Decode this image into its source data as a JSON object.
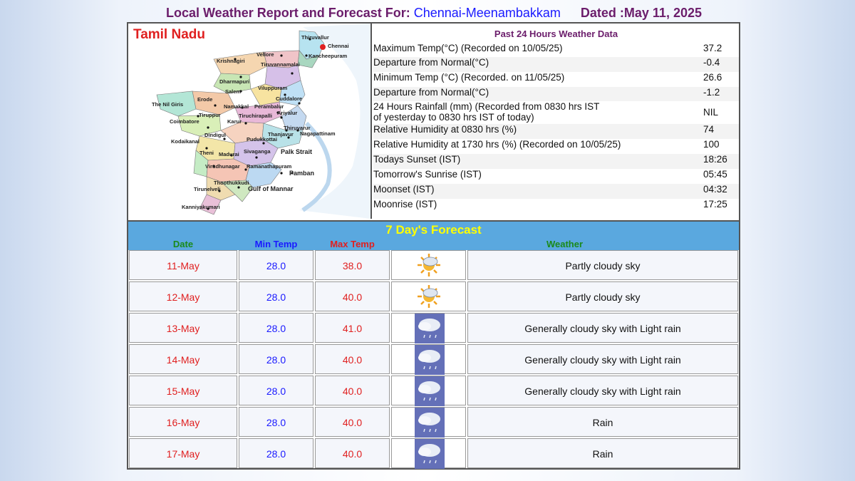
{
  "header": {
    "prefix": "Local Weather Report and Forecast For:",
    "station": "Chennai-Meenambakkam",
    "dated": "Dated :May 11, 2025"
  },
  "map": {
    "title": "Tamil Nadu",
    "districts": [
      "Thiruvallur",
      "Chennai",
      "Kancheepuram",
      "Krishnagiri",
      "Vellore",
      "Tiruvannamalai",
      "Dharmapuri",
      "Salem",
      "Viluppuram",
      "Erode",
      "Namakkal",
      "Cuddalore",
      "The Nil Giris",
      "Perambalur",
      "Ariyalur",
      "Tiruppur",
      "Tiruchirapalli",
      "Karur",
      "Coimbatore",
      "Thiruvarur",
      "Thanjavur",
      "Nagapattinam",
      "Dindigul",
      "Pudukkottai",
      "Kodaikanal",
      "Theni",
      "Madurai",
      "Sivaganga",
      "Virudhunagar",
      "Ramanathapuram",
      "Thoothukkudi",
      "Tirunelveli",
      "Kanniyakumari"
    ],
    "seas": [
      "Palk Strait",
      "Pamban",
      "Gulf of Mannar"
    ]
  },
  "past24": {
    "heading": "Past 24 Hours Weather Data",
    "rows": [
      {
        "label": "Maximum Temp(°C) (Recorded on 10/05/25)",
        "value": "37.2"
      },
      {
        "label": "Departure from Normal(°C)",
        "value": "-0.4"
      },
      {
        "label": "Minimum Temp (°C) (Recorded. on 11/05/25)",
        "value": "26.6"
      },
      {
        "label": "Departure from Normal(°C)",
        "value": "-1.2"
      },
      {
        "label": "24 Hours Rainfall (mm) (Recorded from 0830 hrs IST",
        "label2": "of yesterday to 0830 hrs IST of today)",
        "value": "NIL"
      },
      {
        "label": "Relative Humidity at 0830 hrs (%)",
        "value": "74"
      },
      {
        "label": "Relative Humidity at 1730 hrs (%) (Recorded on 10/05/25)",
        "value": "100"
      },
      {
        "label": "Todays Sunset (IST)",
        "value": "18:26"
      },
      {
        "label": "Tomorrow's Sunrise (IST)",
        "value": "05:45"
      },
      {
        "label": "Moonset (IST)",
        "value": "04:32"
      },
      {
        "label": "Moonrise (IST)",
        "value": "17:25"
      }
    ]
  },
  "forecast": {
    "title": "7 Day's Forecast",
    "columns": {
      "date": "Date",
      "min": "Min Temp",
      "max": "Max Temp",
      "weather": "Weather"
    },
    "days": [
      {
        "date": "11-May",
        "min": "28.0",
        "max": "38.0",
        "icon": "partly-cloudy-icon",
        "weather": "Partly cloudy sky"
      },
      {
        "date": "12-May",
        "min": "28.0",
        "max": "40.0",
        "icon": "partly-cloudy-icon",
        "weather": "Partly cloudy sky"
      },
      {
        "date": "13-May",
        "min": "28.0",
        "max": "41.0",
        "icon": "cloud-rain-icon",
        "weather": "Generally cloudy sky with Light rain"
      },
      {
        "date": "14-May",
        "min": "28.0",
        "max": "40.0",
        "icon": "cloud-rain-icon",
        "weather": "Generally cloudy sky with Light rain"
      },
      {
        "date": "15-May",
        "min": "28.0",
        "max": "40.0",
        "icon": "cloud-rain-icon",
        "weather": "Generally cloudy sky with Light rain"
      },
      {
        "date": "16-May",
        "min": "28.0",
        "max": "40.0",
        "icon": "cloud-rain-icon",
        "weather": "Rain"
      },
      {
        "date": "17-May",
        "min": "28.0",
        "max": "40.0",
        "icon": "cloud-rain-icon",
        "weather": "Rain"
      }
    ]
  },
  "colors": {
    "title_purple": "#6b1d6b",
    "station_blue": "#1a1aff",
    "header_band": "#5aa8df",
    "forecast_title": "#ffff00",
    "date_red": "#e02020",
    "weather_green": "#1a8a1a"
  }
}
